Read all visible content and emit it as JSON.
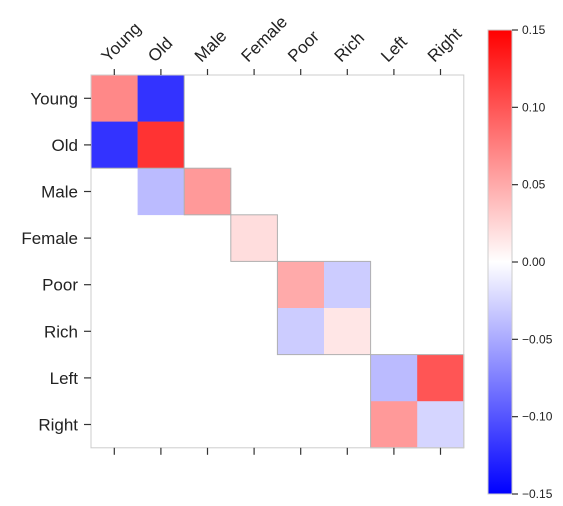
{
  "chart_data": {
    "type": "heatmap",
    "rows": [
      "Young",
      "Old",
      "Male",
      "Female",
      "Poor",
      "Rich",
      "Left",
      "Right"
    ],
    "columns": [
      "Young",
      "Old",
      "Male",
      "Female",
      "Poor",
      "Rich",
      "Left",
      "Right"
    ],
    "matrix": [
      [
        0.07,
        -0.12,
        null,
        null,
        null,
        null,
        null,
        null
      ],
      [
        -0.12,
        0.12,
        null,
        null,
        null,
        null,
        null,
        null
      ],
      [
        null,
        -0.04,
        0.06,
        null,
        null,
        null,
        null,
        null
      ],
      [
        null,
        null,
        null,
        0.02,
        null,
        null,
        null,
        null
      ],
      [
        null,
        null,
        null,
        null,
        0.05,
        -0.03,
        null,
        null
      ],
      [
        null,
        null,
        null,
        null,
        -0.03,
        0.015,
        null,
        null
      ],
      [
        null,
        null,
        null,
        null,
        null,
        null,
        -0.04,
        0.1
      ],
      [
        null,
        null,
        null,
        null,
        null,
        null,
        0.06,
        -0.025
      ]
    ],
    "colormap": {
      "low": "#0000ff",
      "mid": "#ffffff",
      "high": "#ff0000"
    },
    "colorbar": {
      "range": [
        -0.15,
        0.15
      ],
      "ticks": [
        "0.15",
        "0.10",
        "0.05",
        "0.00",
        "−0.05",
        "−0.10",
        "−0.15"
      ]
    },
    "blocks": [
      [
        0,
        1
      ],
      [
        2,
        2
      ],
      [
        3,
        3
      ],
      [
        4,
        5
      ],
      [
        6,
        7
      ]
    ],
    "title": "",
    "xlabel": "",
    "ylabel": ""
  }
}
